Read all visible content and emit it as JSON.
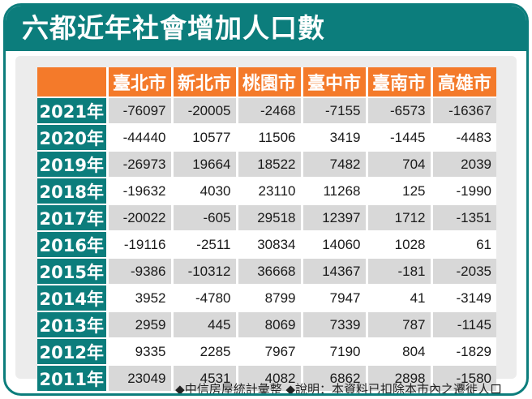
{
  "title": "六都近年社會增加人口數",
  "footnote": "◆中信房屋統計彙整 ◆說明：本資料已扣除本市內之遷徙人口",
  "colors": {
    "frame": "#0c7d7c",
    "header": "#f47a2a",
    "row_label": "#0c7d7c",
    "row_shaded": "#d8d8d8"
  },
  "chart_data": {
    "type": "table",
    "title": "六都近年社會增加人口數",
    "columns": [
      "臺北市",
      "新北市",
      "桃園市",
      "臺中市",
      "臺南市",
      "高雄市"
    ],
    "rows": [
      {
        "year": "2021年",
        "values": [
          -76097,
          -20005,
          -2468,
          -7155,
          -6573,
          -16367
        ]
      },
      {
        "year": "2020年",
        "values": [
          -44440,
          10577,
          11506,
          3419,
          -1445,
          -4483
        ]
      },
      {
        "year": "2019年",
        "values": [
          -26973,
          19664,
          18522,
          7482,
          704,
          2039
        ]
      },
      {
        "year": "2018年",
        "values": [
          -19632,
          4030,
          23110,
          11268,
          125,
          -1990
        ]
      },
      {
        "year": "2017年",
        "values": [
          -20022,
          -605,
          29518,
          12397,
          1712,
          -1351
        ]
      },
      {
        "year": "2016年",
        "values": [
          -19116,
          -2511,
          30834,
          14060,
          1028,
          61
        ]
      },
      {
        "year": "2015年",
        "values": [
          -9386,
          -10312,
          36668,
          14367,
          -181,
          -2035
        ]
      },
      {
        "year": "2014年",
        "values": [
          3952,
          -4780,
          8799,
          7947,
          41,
          -3149
        ]
      },
      {
        "year": "2013年",
        "values": [
          2959,
          445,
          8069,
          7339,
          787,
          -1145
        ]
      },
      {
        "year": "2012年",
        "values": [
          9335,
          2285,
          7967,
          7190,
          804,
          -1829
        ]
      },
      {
        "year": "2011年",
        "values": [
          23049,
          4531,
          4082,
          6862,
          2898,
          -1580
        ]
      }
    ]
  }
}
